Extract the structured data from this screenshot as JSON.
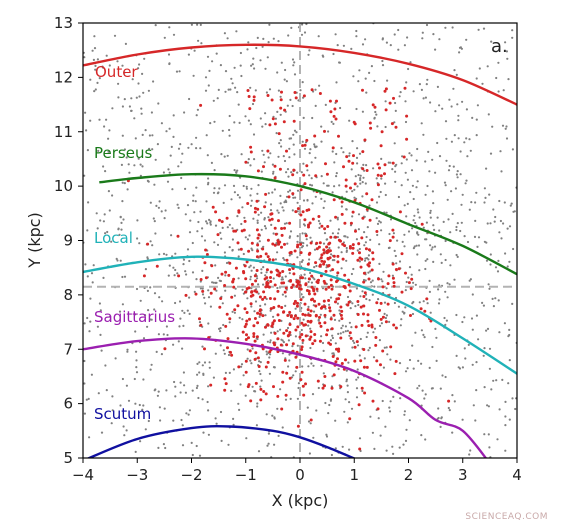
{
  "chart_data": {
    "type": "scatter",
    "xlabel": "X (kpc)",
    "ylabel": "Y (kpc)",
    "xlim": [
      -4,
      4
    ],
    "ylim": [
      5,
      13
    ],
    "xticks": [
      "−4",
      "−3",
      "−2",
      "−1",
      "0",
      "1",
      "2",
      "3",
      "4"
    ],
    "yticks": [
      "5",
      "6",
      "7",
      "8",
      "9",
      "10",
      "11",
      "12",
      "13"
    ],
    "panel_label": "a.",
    "reference_lines": {
      "x": 0,
      "y": 8.15,
      "style": "dashed",
      "color": "#b3b3b3"
    },
    "arms": [
      {
        "name": "Outer",
        "color": "#d62728",
        "points": [
          [
            -4,
            12.22
          ],
          [
            -3,
            12.42
          ],
          [
            -2,
            12.55
          ],
          [
            -1,
            12.6
          ],
          [
            0,
            12.57
          ],
          [
            1,
            12.45
          ],
          [
            2,
            12.25
          ],
          [
            3,
            11.95
          ],
          [
            4,
            11.5
          ]
        ]
      },
      {
        "name": "Perseus",
        "color": "#1a7a1a",
        "points": [
          [
            -3.7,
            10.07
          ],
          [
            -3,
            10.15
          ],
          [
            -2,
            10.22
          ],
          [
            -1,
            10.18
          ],
          [
            0,
            10.0
          ],
          [
            1,
            9.7
          ],
          [
            2,
            9.3
          ],
          [
            3,
            8.9
          ],
          [
            4,
            8.38
          ]
        ]
      },
      {
        "name": "Local",
        "color": "#20b2b8",
        "points": [
          [
            -4,
            8.42
          ],
          [
            -3,
            8.6
          ],
          [
            -2,
            8.7
          ],
          [
            -1,
            8.65
          ],
          [
            0,
            8.5
          ],
          [
            1,
            8.2
          ],
          [
            2,
            7.8
          ],
          [
            3,
            7.2
          ],
          [
            4,
            6.55
          ]
        ]
      },
      {
        "name": "Sagittarius",
        "color": "#9b1fb0",
        "points": [
          [
            -4,
            7.0
          ],
          [
            -3,
            7.15
          ],
          [
            -2,
            7.2
          ],
          [
            -1,
            7.1
          ],
          [
            0,
            6.9
          ],
          [
            1,
            6.6
          ],
          [
            2,
            6.1
          ],
          [
            2.5,
            5.7
          ],
          [
            3,
            5.5
          ],
          [
            3.5,
            4.9
          ]
        ]
      },
      {
        "name": "Scutum",
        "color": "#1010a0",
        "points": [
          [
            -4,
            4.95
          ],
          [
            -3,
            5.35
          ],
          [
            -2,
            5.55
          ],
          [
            -1.3,
            5.58
          ],
          [
            -0.5,
            5.5
          ],
          [
            0,
            5.38
          ],
          [
            0.5,
            5.2
          ],
          [
            1.1,
            4.95
          ]
        ]
      }
    ],
    "series": [
      {
        "name": "",
        "color": "#808080",
        "count": 1800,
        "distribution": "broad field of grey points across the full panel"
      },
      {
        "name": "",
        "color": "#d62728",
        "count": 700,
        "distribution": "red points concentrated between X −2 and 2.5, Y 6 and 10"
      }
    ]
  },
  "watermark": "SCIENCEAQ.COM"
}
